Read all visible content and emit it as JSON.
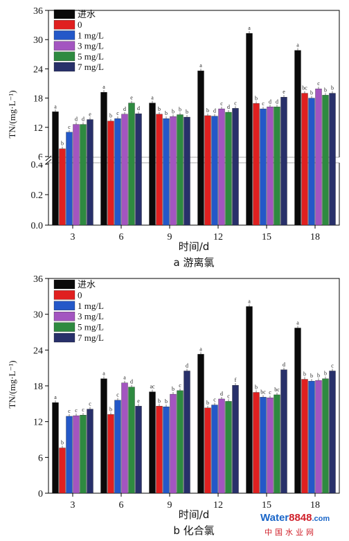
{
  "legend": [
    "进水",
    "0",
    "1 mg/L",
    "3 mg/L",
    "5 mg/L",
    "7 mg/L"
  ],
  "colors": [
    "#0a0a0a",
    "#e02020",
    "#2458c8",
    "#a355c0",
    "#2e8a40",
    "#28306a"
  ],
  "watermark": {
    "brand": "Water8848",
    "suffix": ".com",
    "cn": "中国水业网"
  },
  "chart_data": [
    {
      "type": "bar",
      "caption": "a 游离氯",
      "xlabel": "时间/d",
      "ylabel": "TN/(mg·L⁻¹)",
      "categories": [
        "3",
        "6",
        "9",
        "12",
        "15",
        "18"
      ],
      "axis_break": {
        "lower": [
          0,
          0.4
        ],
        "upper": [
          6,
          36
        ]
      },
      "yticks_lower": [
        0.0,
        0.2,
        0.4
      ],
      "yticks_upper": [
        6,
        12,
        18,
        24,
        30,
        36
      ],
      "series": [
        {
          "name": "进水",
          "values": [
            15.2,
            19.2,
            17.0,
            23.6,
            31.3,
            27.8
          ],
          "labels": [
            "a",
            "a",
            "a",
            "a",
            "a",
            "a"
          ]
        },
        {
          "name": "0",
          "values": [
            7.6,
            13.3,
            14.7,
            14.4,
            16.9,
            19.0
          ],
          "labels": [
            "b",
            "b",
            "b",
            "b",
            "b",
            "bc"
          ]
        },
        {
          "name": "1 mg/L",
          "values": [
            11.0,
            13.8,
            13.8,
            14.3,
            15.8,
            18.0
          ],
          "labels": [
            "c",
            "c",
            "b",
            "d",
            "c",
            "b"
          ]
        },
        {
          "name": "3 mg/L",
          "values": [
            12.6,
            14.7,
            14.2,
            15.8,
            16.2,
            19.9
          ],
          "labels": [
            "d",
            "d",
            "b",
            "c",
            "d",
            "c"
          ]
        },
        {
          "name": "5 mg/L",
          "values": [
            12.6,
            17.0,
            14.6,
            15.1,
            16.2,
            18.6
          ],
          "labels": [
            "d",
            "e",
            "b",
            "d",
            "d",
            "b"
          ]
        },
        {
          "name": "7 mg/L",
          "values": [
            13.6,
            14.8,
            14.1,
            15.9,
            18.2,
            19.0
          ],
          "labels": [
            "e",
            "d",
            "b",
            "c",
            "e",
            "b"
          ]
        }
      ]
    },
    {
      "type": "bar",
      "caption": "b 化合氯",
      "xlabel": "时间/d",
      "ylabel": "TN/(mg·L⁻¹)",
      "categories": [
        "3",
        "6",
        "9",
        "12",
        "15",
        "18"
      ],
      "ylim": [
        0,
        36
      ],
      "yticks": [
        0,
        6,
        12,
        18,
        24,
        30,
        36
      ],
      "series": [
        {
          "name": "进水",
          "values": [
            15.2,
            19.2,
            17.0,
            23.3,
            31.3,
            27.7
          ],
          "labels": [
            "a",
            "a",
            "ac",
            "a",
            "a",
            "a"
          ]
        },
        {
          "name": "0",
          "values": [
            7.6,
            13.2,
            14.6,
            14.3,
            16.9,
            19.1
          ],
          "labels": [
            "b",
            "b",
            "b",
            "b",
            "b",
            "b"
          ]
        },
        {
          "name": "1 mg/L",
          "values": [
            12.9,
            15.6,
            14.5,
            14.8,
            16.1,
            18.8
          ],
          "labels": [
            "c",
            "c",
            "b",
            "c",
            "bc",
            "b"
          ]
        },
        {
          "name": "3 mg/L",
          "values": [
            13.0,
            18.5,
            16.6,
            15.8,
            16.0,
            18.9
          ],
          "labels": [
            "c",
            "a",
            "b",
            "d",
            "c",
            "b"
          ]
        },
        {
          "name": "5 mg/L",
          "values": [
            13.1,
            17.8,
            17.2,
            15.4,
            16.5,
            19.2
          ],
          "labels": [
            "c",
            "d",
            "c",
            "c",
            "bc",
            "b"
          ]
        },
        {
          "name": "7 mg/L",
          "values": [
            14.1,
            14.6,
            20.5,
            18.1,
            20.7,
            20.5
          ],
          "labels": [
            "c",
            "e",
            "d",
            "f",
            "d",
            "c"
          ]
        }
      ]
    }
  ]
}
